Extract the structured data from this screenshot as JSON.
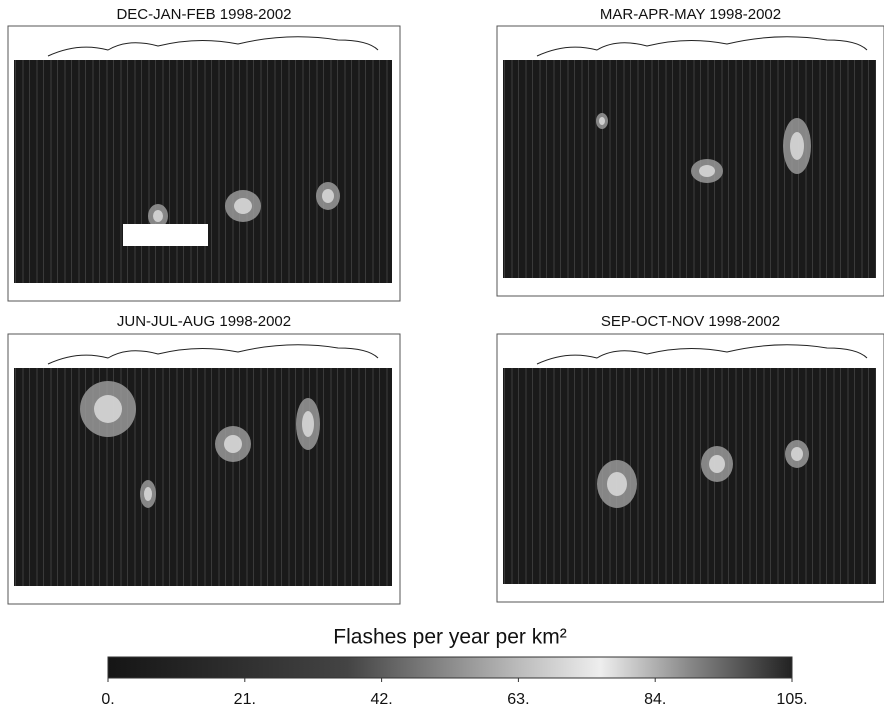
{
  "panels": [
    {
      "title": "DEC-JAN-FEB 1998-2002"
    },
    {
      "title": "MAR-APR-MAY 1998-2002"
    },
    {
      "title": "JUN-JUL-AUG 1998-2002"
    },
    {
      "title": "SEP-OCT-NOV 1998-2002"
    }
  ],
  "colorbar": {
    "label": "Flashes per year per km²",
    "lim": [
      0,
      105
    ],
    "ticks": [
      {
        "value": 0,
        "label": "0."
      },
      {
        "value": 21,
        "label": "21."
      },
      {
        "value": 42,
        "label": "42."
      },
      {
        "value": 63,
        "label": "63."
      },
      {
        "value": 84,
        "label": "84."
      },
      {
        "value": 105,
        "label": "105."
      }
    ]
  }
}
